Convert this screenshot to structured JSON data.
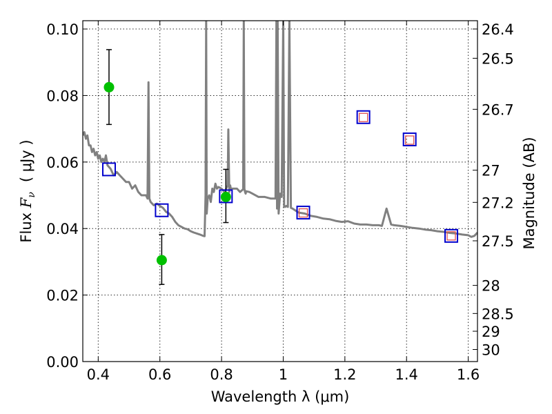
{
  "chart_data": {
    "type": "scatter",
    "xlabel": "Wavelength  λ (μm)",
    "ylabel": "Flux  F_ν  ( μJy )",
    "ylabel_prefix": "Flux  ",
    "ylabel_symbol": "F",
    "ylabel_symbol_sub": "ν",
    "ylabel_unit": "( μJy )",
    "y2label": "Magnitude (AB)",
    "xlim": [
      0.35,
      1.63
    ],
    "ylim": [
      0.0,
      0.1025
    ],
    "grid": true,
    "x_ticks": [
      0.4,
      0.6,
      0.8,
      1.0,
      1.2,
      1.4,
      1.6
    ],
    "x_tick_labels": [
      "0.4",
      "0.6",
      "0.8",
      "1",
      "1.2",
      "1.4",
      "1.6"
    ],
    "y_ticks": [
      0.0,
      0.02,
      0.04,
      0.06,
      0.08,
      0.1
    ],
    "y_tick_labels": [
      "0.00",
      "0.02",
      "0.04",
      "0.06",
      "0.08",
      "0.10"
    ],
    "mag_ticks": [
      26.4,
      26.5,
      26.7,
      27,
      27.2,
      27.5,
      28,
      28.5,
      29,
      30
    ],
    "mag_tick_labels": [
      "26.4",
      "26.5",
      "26.7",
      "27",
      "27.2",
      "27.5",
      "28",
      "28.5",
      "29",
      "30"
    ],
    "series": [
      {
        "name": "Observed (green, with error bars)",
        "marker": "circle",
        "color": "#00c000",
        "x": [
          0.435,
          0.606,
          0.814
        ],
        "y": [
          0.0825,
          0.0305,
          0.0495
        ],
        "yerr_low": [
          0.0713,
          0.0232,
          0.0418
        ],
        "yerr_high": [
          0.0938,
          0.0382,
          0.0578
        ]
      },
      {
        "name": "Model photometry (blue squares)",
        "marker": "square",
        "color": "#0000cc",
        "x": [
          0.435,
          0.606,
          0.814,
          1.065,
          1.26,
          1.41,
          1.545
        ],
        "y": [
          0.0578,
          0.0455,
          0.0497,
          0.0448,
          0.0735,
          0.0668,
          0.0378
        ]
      },
      {
        "name": "Observed upper/IR (red squares)",
        "marker": "square-small",
        "color": "#e05050",
        "x": [
          1.065,
          1.26,
          1.41,
          1.545
        ],
        "y": [
          0.0447,
          0.0734,
          0.0666,
          0.0378
        ]
      },
      {
        "name": "Best-fit SED template",
        "marker": "line",
        "color": "#808080",
        "x": [
          0.35,
          0.355,
          0.36,
          0.365,
          0.37,
          0.375,
          0.38,
          0.385,
          0.39,
          0.395,
          0.4,
          0.405,
          0.41,
          0.415,
          0.42,
          0.425,
          0.43,
          0.44,
          0.45,
          0.46,
          0.47,
          0.48,
          0.49,
          0.5,
          0.51,
          0.52,
          0.53,
          0.54,
          0.55,
          0.555,
          0.56,
          0.563,
          0.566,
          0.57,
          0.58,
          0.59,
          0.6,
          0.61,
          0.62,
          0.63,
          0.64,
          0.65,
          0.66,
          0.67,
          0.68,
          0.69,
          0.7,
          0.71,
          0.72,
          0.73,
          0.74,
          0.745,
          0.748,
          0.75,
          0.752,
          0.755,
          0.76,
          0.765,
          0.77,
          0.775,
          0.78,
          0.785,
          0.79,
          0.8,
          0.81,
          0.82,
          0.822,
          0.825,
          0.828,
          0.83,
          0.84,
          0.85,
          0.86,
          0.87,
          0.872,
          0.874,
          0.876,
          0.878,
          0.88,
          0.89,
          0.9,
          0.92,
          0.94,
          0.96,
          0.975,
          0.978,
          0.98,
          0.982,
          0.985,
          0.99,
          0.995,
          1.0,
          1.003,
          1.006,
          1.01,
          1.015,
          1.02,
          1.025,
          1.03,
          1.05,
          1.07,
          1.09,
          1.11,
          1.13,
          1.15,
          1.17,
          1.19,
          1.21,
          1.23,
          1.25,
          1.27,
          1.29,
          1.31,
          1.32,
          1.335,
          1.35,
          1.36,
          1.38,
          1.4,
          1.42,
          1.44,
          1.46,
          1.48,
          1.5,
          1.52,
          1.54,
          1.56,
          1.58,
          1.6,
          1.61,
          1.62,
          1.63
        ],
        "y": [
          0.068,
          0.069,
          0.067,
          0.068,
          0.065,
          0.065,
          0.063,
          0.064,
          0.062,
          0.063,
          0.061,
          0.062,
          0.06,
          0.061,
          0.06,
          0.062,
          0.059,
          0.058,
          0.056,
          0.057,
          0.056,
          0.055,
          0.054,
          0.054,
          0.052,
          0.053,
          0.051,
          0.05,
          0.05,
          0.05,
          0.049,
          0.084,
          0.049,
          0.048,
          0.047,
          0.0475,
          0.0468,
          0.0462,
          0.045,
          0.0445,
          0.0435,
          0.042,
          0.041,
          0.0405,
          0.04,
          0.0398,
          0.0392,
          0.0388,
          0.0385,
          0.0382,
          0.0378,
          0.0377,
          0.05,
          0.1025,
          0.0445,
          0.049,
          0.05,
          0.048,
          0.052,
          0.051,
          0.0535,
          0.052,
          0.0525,
          0.052,
          0.051,
          0.053,
          0.0698,
          0.051,
          0.053,
          0.052,
          0.052,
          0.052,
          0.051,
          0.0518,
          0.1025,
          0.052,
          0.051,
          0.0505,
          0.0512,
          0.051,
          0.0505,
          0.0495,
          0.0495,
          0.049,
          0.049,
          0.1025,
          0.046,
          0.1025,
          0.0445,
          0.0505,
          0.0495,
          0.1025,
          0.0465,
          0.0465,
          0.0468,
          0.0465,
          0.1025,
          0.0462,
          0.046,
          0.0448,
          0.0445,
          0.0438,
          0.0435,
          0.043,
          0.0428,
          0.0423,
          0.042,
          0.0422,
          0.0415,
          0.0412,
          0.0412,
          0.041,
          0.041,
          0.0408,
          0.046,
          0.0412,
          0.041,
          0.0408,
          0.0405,
          0.0402,
          0.04,
          0.0397,
          0.0395,
          0.0392,
          0.039,
          0.0387,
          0.0385,
          0.0382,
          0.038,
          0.0375,
          0.0378,
          0.0388
        ]
      }
    ]
  }
}
